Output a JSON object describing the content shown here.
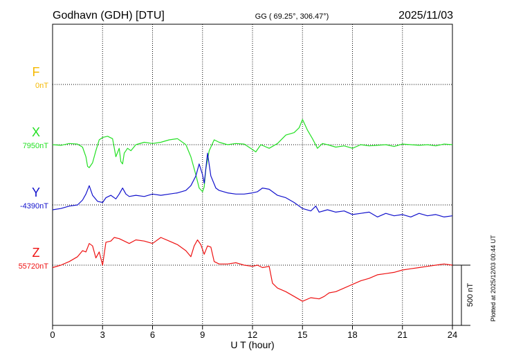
{
  "header": {
    "station": "Godhavn (GDH)  [DTU]",
    "coords": "GG ( 69.25°, 306.47°)",
    "date": "2025/11/03"
  },
  "side_note": "Plotted at 2025/12/03 00:44 UT",
  "scale_bar_label": "500 nT",
  "colors": {
    "F": "#f5b800",
    "X": "#22e022",
    "Y": "#1010cc",
    "Z": "#ee1111"
  },
  "chart_data": {
    "type": "line",
    "xlabel": "U T (hour)",
    "xlim": [
      0,
      24
    ],
    "xticks": [
      "0",
      "3",
      "6",
      "9",
      "12",
      "15",
      "18",
      "21",
      "24"
    ],
    "scale_bar_nT": 500,
    "series": [
      {
        "name": "F",
        "baseline_label": "0nT",
        "baseline_nT": 0,
        "values": []
      },
      {
        "name": "X",
        "baseline_label": "7950nT",
        "baseline_nT": 7950,
        "x": [
          0,
          0.5,
          1,
          1.5,
          1.8,
          2,
          2.1,
          2.2,
          2.4,
          2.6,
          2.8,
          3,
          3.3,
          3.6,
          3.8,
          4,
          4.1,
          4.2,
          4.3,
          4.5,
          4.7,
          5,
          5.5,
          6,
          6.5,
          7,
          7.5,
          8,
          8.3,
          8.6,
          8.8,
          9,
          9.1,
          9.2,
          9.4,
          9.7,
          10,
          10.5,
          11,
          11.5,
          12,
          12.2,
          12.5,
          13,
          13.5,
          14,
          14.5,
          14.8,
          15,
          15.3,
          15.6,
          15.9,
          16.2,
          16.5,
          17,
          17.5,
          18,
          18.5,
          19,
          19.5,
          20,
          20.5,
          21,
          21.5,
          22,
          22.5,
          23,
          23.5,
          24
        ],
        "values": [
          7950,
          7945,
          7960,
          7955,
          7930,
          7850,
          7770,
          7760,
          7800,
          7900,
          7990,
          8010,
          8020,
          8000,
          7850,
          7920,
          7810,
          7790,
          7880,
          7920,
          7900,
          7950,
          7970,
          7960,
          7970,
          7990,
          8000,
          7950,
          7850,
          7700,
          7590,
          7560,
          7600,
          7750,
          7900,
          7990,
          7970,
          7950,
          7960,
          7955,
          7910,
          7890,
          7950,
          7920,
          7960,
          8030,
          8050,
          8090,
          8160,
          8070,
          8000,
          7920,
          7960,
          7950,
          7930,
          7940,
          7920,
          7950,
          7940,
          7945,
          7950,
          7935,
          7955,
          7950,
          7945,
          7950,
          7940,
          7955,
          7950
        ]
      },
      {
        "name": "Y",
        "baseline_label": "-4390nT",
        "baseline_nT": -4390,
        "x": [
          0,
          0.5,
          1,
          1.5,
          1.8,
          2,
          2.2,
          2.4,
          2.7,
          3,
          3.2,
          3.5,
          3.8,
          4,
          4.2,
          4.4,
          4.6,
          5,
          5.5,
          6,
          6.5,
          7,
          7.5,
          8,
          8.3,
          8.6,
          8.8,
          9,
          9.1,
          9.3,
          9.5,
          9.8,
          10,
          10.5,
          11,
          11.5,
          12,
          12.3,
          12.6,
          13,
          13.5,
          14,
          14.5,
          15,
          15.5,
          15.8,
          16,
          16.5,
          17,
          17.5,
          18,
          18.5,
          19,
          19.5,
          20,
          20.5,
          21,
          21.5,
          22,
          22.5,
          23,
          23.5,
          24
        ],
        "values": [
          -4430,
          -4420,
          -4400,
          -4390,
          -4350,
          -4300,
          -4230,
          -4310,
          -4360,
          -4370,
          -4330,
          -4310,
          -4340,
          -4300,
          -4250,
          -4300,
          -4320,
          -4310,
          -4320,
          -4300,
          -4310,
          -4300,
          -4290,
          -4270,
          -4230,
          -4150,
          -4050,
          -4140,
          -4210,
          -3960,
          -4150,
          -4250,
          -4270,
          -4290,
          -4300,
          -4300,
          -4290,
          -4280,
          -4250,
          -4260,
          -4310,
          -4330,
          -4370,
          -4420,
          -4440,
          -4400,
          -4450,
          -4430,
          -4450,
          -4440,
          -4470,
          -4460,
          -4450,
          -4490,
          -4460,
          -4480,
          -4470,
          -4490,
          -4460,
          -4480,
          -4470,
          -4490,
          -4480
        ]
      },
      {
        "name": "Z",
        "baseline_label": "55720nT",
        "baseline_nT": 55720,
        "x": [
          0,
          0.5,
          1,
          1.5,
          1.8,
          2,
          2.2,
          2.4,
          2.6,
          2.8,
          3,
          3.2,
          3.5,
          3.7,
          4,
          4.3,
          4.6,
          5,
          5.5,
          6,
          6.5,
          7,
          7.5,
          8,
          8.3,
          8.5,
          8.7,
          8.9,
          9.1,
          9.3,
          9.5,
          9.7,
          10,
          10.5,
          11,
          11.5,
          12,
          12.3,
          12.6,
          13,
          13.2,
          13.5,
          14,
          14.5,
          15,
          15.5,
          16,
          16.3,
          16.6,
          17,
          17.5,
          18,
          18.5,
          19,
          19.5,
          20,
          20.5,
          21,
          21.5,
          22,
          22.5,
          23,
          23.5,
          24
        ],
        "values": [
          55700,
          55720,
          55750,
          55790,
          55840,
          55830,
          55900,
          55880,
          55780,
          55830,
          55720,
          55910,
          55920,
          55950,
          55940,
          55920,
          55900,
          55930,
          55920,
          55900,
          55950,
          55920,
          55890,
          55840,
          55790,
          55880,
          55930,
          55890,
          55810,
          55880,
          55870,
          55750,
          55730,
          55730,
          55740,
          55720,
          55710,
          55720,
          55700,
          55710,
          55570,
          55530,
          55500,
          55460,
          55420,
          55450,
          55440,
          55460,
          55490,
          55500,
          55530,
          55560,
          55590,
          55610,
          55640,
          55650,
          55660,
          55680,
          55690,
          55700,
          55710,
          55720,
          55730,
          55720
        ]
      }
    ]
  }
}
